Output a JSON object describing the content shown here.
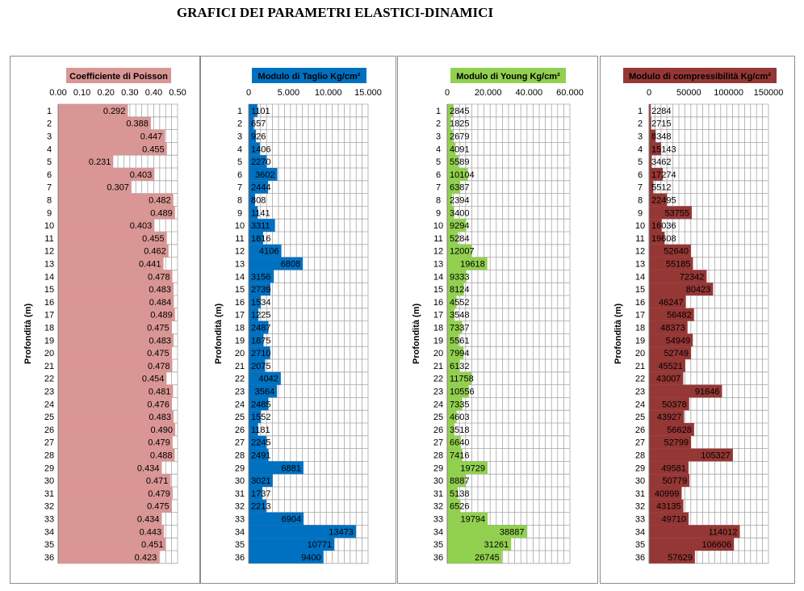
{
  "page": {
    "title": "GRAFICI DEI PARAMETRI ELASTICI-DINAMICI"
  },
  "chart_data": [
    {
      "type": "bar",
      "orientation": "horizontal",
      "legend": "Coefficiente di Poisson",
      "color": "#d99694",
      "ylabel": "Profondità (m)",
      "xlim": [
        0,
        0.5
      ],
      "xticks": [
        "0.00",
        "0.10",
        "0.20",
        "0.30",
        "0.40",
        "0.50"
      ],
      "decimals": 3,
      "categories": [
        "1",
        "2",
        "3",
        "4",
        "5",
        "6",
        "7",
        "8",
        "9",
        "10",
        "11",
        "12",
        "13",
        "14",
        "15",
        "16",
        "17",
        "18",
        "19",
        "20",
        "21",
        "22",
        "23",
        "24",
        "25",
        "26",
        "27",
        "28",
        "29",
        "30",
        "31",
        "32",
        "33",
        "34",
        "35",
        "36"
      ],
      "values": [
        0.292,
        0.388,
        0.447,
        0.455,
        0.231,
        0.403,
        0.307,
        0.482,
        0.489,
        0.403,
        0.455,
        0.462,
        0.441,
        0.478,
        0.483,
        0.484,
        0.489,
        0.475,
        0.483,
        0.475,
        0.478,
        0.454,
        0.481,
        0.476,
        0.483,
        0.49,
        0.479,
        0.488,
        0.434,
        0.471,
        0.479,
        0.475,
        0.434,
        0.443,
        0.451,
        0.423
      ]
    },
    {
      "type": "bar",
      "orientation": "horizontal",
      "legend": "Modulo di Taglio  Kg/cm²",
      "color": "#0070c0",
      "ylabel": "Profondità (m)",
      "xlim": [
        0,
        15000
      ],
      "xticks": [
        "0",
        "5.000",
        "10.000",
        "15.000"
      ],
      "decimals": 0,
      "categories": [
        "1",
        "2",
        "3",
        "4",
        "5",
        "6",
        "7",
        "8",
        "9",
        "10",
        "11",
        "12",
        "13",
        "14",
        "15",
        "16",
        "17",
        "18",
        "19",
        "20",
        "21",
        "22",
        "23",
        "24",
        "25",
        "26",
        "27",
        "28",
        "29",
        "30",
        "31",
        "32",
        "33",
        "34",
        "35",
        "36"
      ],
      "values": [
        1101,
        657,
        926,
        1406,
        2270,
        3602,
        2444,
        808,
        1141,
        3311,
        1816,
        4106,
        6808,
        3156,
        2739,
        1534,
        1225,
        2487,
        1875,
        2710,
        2075,
        4042,
        3564,
        2485,
        1552,
        1181,
        2245,
        2491,
        6881,
        3021,
        1737,
        2213,
        6904,
        13473,
        10771,
        9400
      ]
    },
    {
      "type": "bar",
      "orientation": "horizontal",
      "legend": "Modulo di Young Kg/cm²",
      "color": "#92d050",
      "ylabel": "Profondità (m)",
      "xlim": [
        0,
        60000
      ],
      "xticks": [
        "0",
        "20.000",
        "40.000",
        "60.000"
      ],
      "decimals": 0,
      "categories": [
        "1",
        "2",
        "3",
        "4",
        "5",
        "6",
        "7",
        "8",
        "9",
        "10",
        "11",
        "12",
        "13",
        "14",
        "15",
        "16",
        "17",
        "18",
        "19",
        "20",
        "21",
        "22",
        "23",
        "24",
        "25",
        "26",
        "27",
        "28",
        "29",
        "30",
        "31",
        "32",
        "33",
        "34",
        "35",
        "36"
      ],
      "values": [
        2845,
        1825,
        2679,
        4091,
        5589,
        10104,
        6387,
        2394,
        3400,
        9294,
        5284,
        12007,
        19618,
        9333,
        8124,
        4552,
        3548,
        7337,
        5561,
        7994,
        6132,
        11758,
        10556,
        7335,
        4603,
        3518,
        6640,
        7416,
        19729,
        8887,
        5138,
        6526,
        19794,
        38887,
        31261,
        26745
      ]
    },
    {
      "type": "bar",
      "orientation": "horizontal",
      "legend": "Modulo di compressibilità  Kg/cm²",
      "color": "#953735",
      "ylabel": "Profondità (m)",
      "xlim": [
        0,
        150000
      ],
      "xticks": [
        "0",
        "50000",
        "100000",
        "150000"
      ],
      "decimals": 0,
      "categories": [
        "1",
        "2",
        "3",
        "4",
        "5",
        "6",
        "7",
        "8",
        "9",
        "10",
        "11",
        "12",
        "13",
        "14",
        "15",
        "16",
        "17",
        "18",
        "19",
        "20",
        "21",
        "22",
        "23",
        "24",
        "25",
        "26",
        "27",
        "28",
        "29",
        "30",
        "31",
        "32",
        "33",
        "34",
        "35",
        "36"
      ],
      "values": [
        2284,
        2715,
        8348,
        15143,
        3462,
        17274,
        5512,
        22495,
        53755,
        16036,
        19608,
        52640,
        55185,
        72342,
        80423,
        46247,
        56482,
        48373,
        54949,
        52749,
        45521,
        43007,
        91646,
        50378,
        43927,
        56628,
        52799,
        105327,
        49581,
        50779,
        40999,
        43135,
        49710,
        114012,
        106606,
        57629
      ]
    }
  ]
}
